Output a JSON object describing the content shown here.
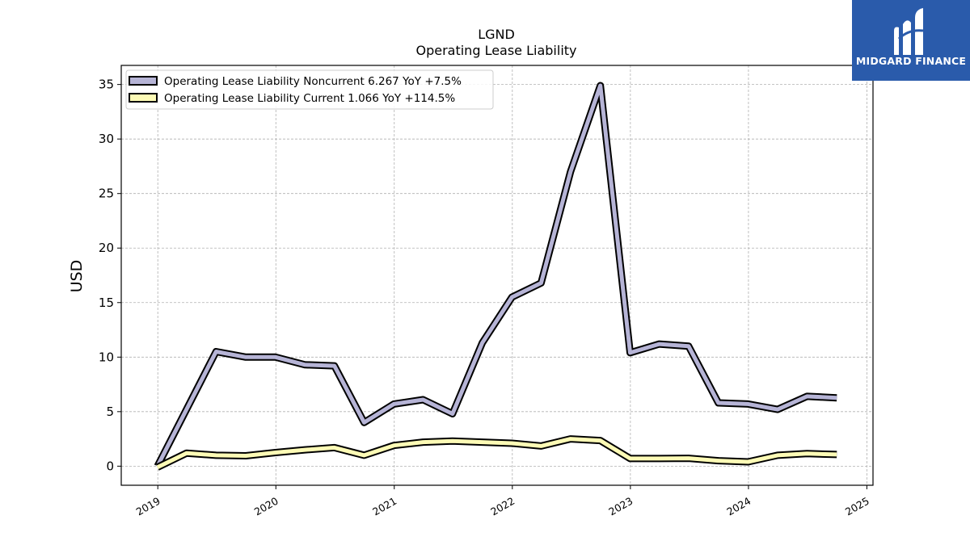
{
  "brand": {
    "name": "MIDGARD FINANCE",
    "bg_color": "#2a5bab",
    "logo_icon": "midgard-logo-icon"
  },
  "chart_data": {
    "type": "line",
    "title": "LGND",
    "subtitle": "Operating Lease Liability",
    "ylabel": "USD",
    "xlabel": "",
    "xlim": [
      "2018-09-10",
      "2025-01-20"
    ],
    "ylim": [
      -1.75,
      36.75
    ],
    "yticks": [
      0,
      5,
      10,
      15,
      20,
      25,
      30,
      35
    ],
    "xticks": [
      "2019-01-01",
      "2020-01-01",
      "2021-01-01",
      "2022-01-01",
      "2023-01-01",
      "2024-01-01",
      "2025-01-01"
    ],
    "xtick_labels": [
      "2019",
      "2020",
      "2021",
      "2022",
      "2023",
      "2024",
      "2025"
    ],
    "grid": true,
    "legend_position": "top-left",
    "series": [
      {
        "name": "Operating Lease Liability Noncurrent  6.267 YoY +7.5%",
        "color": "#b6b4d6",
        "points": [
          [
            "2018-12-31",
            0.0
          ],
          [
            "2019-06-30",
            10.5
          ],
          [
            "2019-09-30",
            10.0
          ],
          [
            "2019-12-31",
            10.0
          ],
          [
            "2020-03-31",
            9.3
          ],
          [
            "2020-06-30",
            9.2
          ],
          [
            "2020-09-30",
            4.0
          ],
          [
            "2020-12-31",
            5.7
          ],
          [
            "2021-03-31",
            6.1
          ],
          [
            "2021-06-30",
            4.8
          ],
          [
            "2021-09-30",
            11.3
          ],
          [
            "2021-12-31",
            15.5
          ],
          [
            "2022-03-31",
            16.8
          ],
          [
            "2022-06-30",
            27.0
          ],
          [
            "2022-09-30",
            34.9
          ],
          [
            "2022-12-31",
            10.4
          ],
          [
            "2023-03-31",
            11.2
          ],
          [
            "2023-06-30",
            11.0
          ],
          [
            "2023-09-30",
            5.8
          ],
          [
            "2023-12-31",
            5.7
          ],
          [
            "2024-03-31",
            5.2
          ],
          [
            "2024-06-30",
            6.4
          ],
          [
            "2024-09-30",
            6.27
          ]
        ]
      },
      {
        "name": "Operating Lease Liability Current  1.066 YoY +114.5%",
        "color": "#fdfbb6",
        "points": [
          [
            "2018-12-31",
            -0.1
          ],
          [
            "2019-03-31",
            1.2
          ],
          [
            "2019-06-30",
            1.0
          ],
          [
            "2019-09-30",
            0.95
          ],
          [
            "2019-12-31",
            1.25
          ],
          [
            "2020-03-31",
            1.5
          ],
          [
            "2020-06-30",
            1.7
          ],
          [
            "2020-09-30",
            1.0
          ],
          [
            "2020-12-31",
            1.9
          ],
          [
            "2021-03-31",
            2.2
          ],
          [
            "2021-06-30",
            2.3
          ],
          [
            "2021-09-30",
            2.2
          ],
          [
            "2021-12-31",
            2.1
          ],
          [
            "2022-03-31",
            1.85
          ],
          [
            "2022-06-30",
            2.5
          ],
          [
            "2022-09-30",
            2.35
          ],
          [
            "2022-12-31",
            0.7
          ],
          [
            "2023-03-31",
            0.7
          ],
          [
            "2023-06-30",
            0.72
          ],
          [
            "2023-09-30",
            0.5
          ],
          [
            "2023-12-31",
            0.4
          ],
          [
            "2024-03-31",
            1.0
          ],
          [
            "2024-06-30",
            1.15
          ],
          [
            "2024-09-30",
            1.07
          ]
        ]
      }
    ]
  }
}
